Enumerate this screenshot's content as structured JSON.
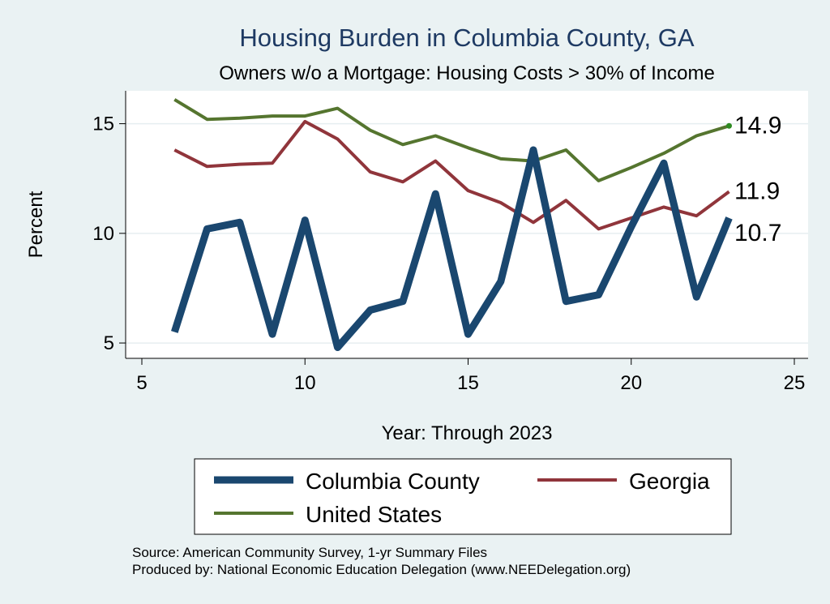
{
  "chart_data": {
    "type": "line",
    "title": "Housing Burden in Columbia County, GA",
    "subtitle": "Owners w/o a Mortgage: Housing Costs > 30% of Income",
    "xlabel": "Year: Through 2023",
    "ylabel": "Percent",
    "xlim": [
      5,
      25
    ],
    "ylim": [
      4.3,
      16.5
    ],
    "xticks": [
      5,
      10,
      15,
      20,
      25
    ],
    "yticks": [
      5,
      10,
      15
    ],
    "grid": true,
    "series": [
      {
        "name": "Columbia County",
        "color": "#1a476f",
        "x": [
          6,
          7,
          8,
          9,
          10,
          11,
          12,
          13,
          14,
          15,
          16,
          17,
          18,
          19,
          20,
          21,
          22,
          23
        ],
        "values": [
          5.5,
          10.2,
          10.5,
          5.4,
          10.6,
          4.8,
          6.5,
          6.9,
          11.8,
          5.4,
          7.8,
          13.8,
          6.9,
          7.2,
          10.3,
          13.2,
          7.1,
          10.7
        ],
        "end_label": "10.7"
      },
      {
        "name": "Georgia",
        "color": "#90353b",
        "x": [
          6,
          7,
          8,
          9,
          10,
          11,
          12,
          13,
          14,
          15,
          16,
          17,
          18,
          19,
          20,
          21,
          22,
          23
        ],
        "values": [
          13.8,
          13.05,
          13.15,
          13.2,
          15.1,
          14.3,
          12.8,
          12.35,
          13.3,
          11.95,
          11.4,
          10.5,
          11.5,
          10.2,
          10.7,
          11.2,
          10.8,
          11.9
        ],
        "end_label": "11.9"
      },
      {
        "name": "United States",
        "color": "#55752f",
        "x": [
          6,
          7,
          8,
          9,
          10,
          11,
          12,
          13,
          14,
          15,
          16,
          17,
          18,
          19,
          20,
          21,
          22,
          23
        ],
        "values": [
          16.1,
          15.2,
          15.25,
          15.35,
          15.35,
          15.7,
          14.7,
          14.05,
          14.45,
          13.9,
          13.4,
          13.3,
          13.8,
          12.4,
          13.0,
          13.65,
          14.45,
          14.9
        ],
        "end_label": "14.9"
      }
    ],
    "legend": {
      "position": "bottom",
      "entries": [
        "Columbia County",
        "Georgia",
        "United States"
      ]
    }
  },
  "footer": {
    "source": "Source: American Community Survey, 1-yr Summary Files",
    "produced": "Produced by: National Economic Education Delegation (www.NEEDelegation.org)"
  }
}
